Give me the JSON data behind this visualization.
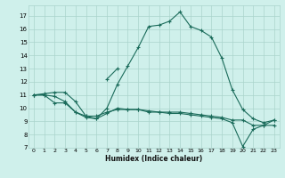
{
  "title": "",
  "xlabel": "Humidex (Indice chaleur)",
  "bg_color": "#cff0eb",
  "grid_color": "#aad4cc",
  "line_color": "#1a6b5a",
  "xlim": [
    -0.5,
    23.5
  ],
  "ylim": [
    7,
    17.8
  ],
  "yticks": [
    7,
    8,
    9,
    10,
    11,
    12,
    13,
    14,
    15,
    16,
    17
  ],
  "xticks": [
    0,
    1,
    2,
    3,
    4,
    5,
    6,
    7,
    8,
    9,
    10,
    11,
    12,
    13,
    14,
    15,
    16,
    17,
    18,
    19,
    20,
    21,
    22,
    23
  ],
  "line1_x": [
    0,
    1,
    2,
    3,
    4,
    5,
    6,
    7,
    8,
    9,
    10,
    11,
    12,
    13,
    14,
    15,
    16,
    17,
    18,
    19,
    20,
    21,
    22,
    23
  ],
  "line1_y": [
    11.0,
    11.1,
    11.2,
    11.2,
    10.5,
    9.4,
    9.2,
    10.0,
    11.8,
    13.2,
    14.6,
    16.2,
    16.3,
    16.6,
    17.3,
    16.2,
    15.9,
    15.4,
    13.8,
    11.4,
    9.9,
    9.2,
    8.9,
    9.1
  ],
  "line2_x": [
    0,
    1,
    2,
    3,
    4,
    5,
    6,
    7,
    8,
    9,
    10,
    11,
    12,
    13,
    14,
    15,
    16,
    17,
    18,
    19,
    20,
    21,
    22,
    23
  ],
  "line2_y": [
    11.0,
    11.0,
    10.4,
    10.4,
    9.7,
    9.4,
    9.4,
    9.7,
    9.9,
    9.9,
    9.9,
    9.8,
    9.7,
    9.7,
    9.7,
    9.6,
    9.5,
    9.4,
    9.3,
    9.1,
    9.1,
    8.7,
    8.7,
    8.7
  ],
  "line3_x": [
    0,
    1,
    2,
    3,
    4,
    5,
    6,
    7,
    8,
    9,
    10,
    11,
    12,
    13,
    14,
    15,
    16,
    17,
    18,
    19,
    20,
    21,
    22,
    23
  ],
  "line3_y": [
    11.0,
    11.0,
    10.9,
    10.5,
    9.7,
    9.3,
    9.2,
    9.6,
    10.0,
    9.9,
    9.9,
    9.7,
    9.7,
    9.6,
    9.6,
    9.5,
    9.4,
    9.3,
    9.2,
    8.9,
    7.1,
    8.4,
    8.7,
    9.1
  ],
  "line4_x": [
    7,
    8
  ],
  "line4_y": [
    12.2,
    13.0
  ]
}
